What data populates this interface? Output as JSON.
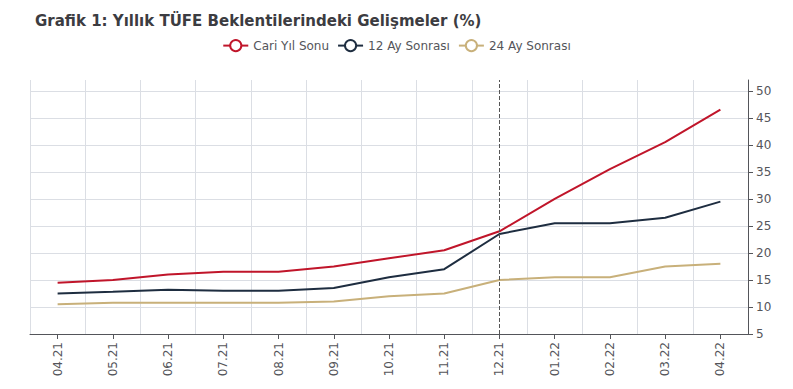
{
  "chart_data": {
    "type": "line",
    "title": "Grafik 1: Yıllık TÜFE Beklentilerindeki Gelişmeler (%)",
    "categories": [
      "04.21",
      "05.21",
      "06.21",
      "07.21",
      "08.21",
      "09.21",
      "10.21",
      "11.21",
      "12.21",
      "01.22",
      "02.22",
      "03.22",
      "04.22"
    ],
    "series": [
      {
        "name": "Cari Yıl Sonu",
        "color": "#c0152a",
        "values": [
          14.5,
          15.0,
          16.0,
          16.5,
          16.5,
          17.5,
          19.0,
          20.5,
          24.0,
          30.0,
          35.5,
          40.5,
          46.5
        ]
      },
      {
        "name": "12 Ay Sonrası",
        "color": "#1e2d40",
        "values": [
          12.5,
          12.8,
          13.2,
          13.0,
          13.0,
          13.5,
          15.5,
          17.0,
          23.5,
          25.5,
          25.5,
          26.5,
          29.5
        ]
      },
      {
        "name": "24 Ay Sonrası",
        "color": "#c8b07a",
        "values": [
          10.5,
          10.8,
          10.8,
          10.8,
          10.8,
          11.0,
          12.0,
          12.5,
          15.0,
          15.5,
          15.5,
          17.5,
          18.0
        ]
      }
    ],
    "vline_x": "12.21",
    "ylim": [
      5,
      52
    ],
    "yticks": [
      5,
      10,
      15,
      20,
      25,
      30,
      35,
      40,
      45,
      50
    ],
    "grid": true,
    "legend": "top"
  }
}
